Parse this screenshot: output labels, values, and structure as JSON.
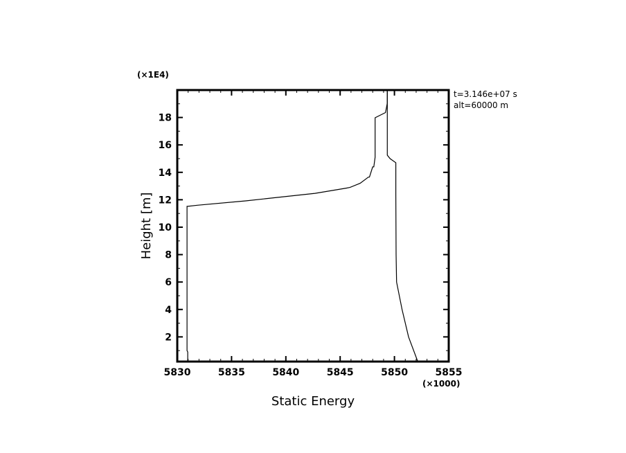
{
  "chart_data": {
    "type": "line",
    "xlabel": "Static Energy",
    "ylabel": "Height [m]",
    "x_multiplier_label": "(×1000)",
    "y_multiplier_label": "(×1E4)",
    "xlim": [
      5830,
      5855
    ],
    "ylim": [
      0.2,
      20
    ],
    "x_ticks": [
      5830,
      5835,
      5840,
      5845,
      5850,
      5855
    ],
    "x_tick_labels": [
      "5830",
      "5835",
      "5840",
      "5845",
      "5850",
      "5855"
    ],
    "y_ticks": [
      2,
      4,
      6,
      8,
      10,
      12,
      14,
      16,
      18
    ],
    "y_tick_labels": [
      "2",
      "4",
      "6",
      "8",
      "10",
      "12",
      "14",
      "16",
      "18"
    ],
    "grid": false,
    "color": "#000000",
    "annotations": [
      "t=3.146e+07 s",
      "alt=60000 m"
    ],
    "series": [
      {
        "x": [
          5830.96,
          5830.96,
          5830.9,
          5830.9,
          5830.96,
          5831.85,
          5836.3,
          5842.7,
          5845.56,
          5845.9,
          5846.84,
          5847.6,
          5847.7,
          5848.0,
          5848.1,
          5848.22,
          5848.22,
          5849.18,
          5849.34,
          5849.34
        ],
        "y": [
          0.2,
          0.9,
          1.0,
          11.52,
          11.52,
          11.6,
          11.92,
          12.47,
          12.85,
          12.9,
          13.2,
          13.65,
          13.65,
          14.4,
          14.4,
          15.1,
          17.98,
          18.36,
          19.05,
          20
        ]
      },
      {
        "x": [
          5852.15,
          5851.3,
          5850.7,
          5850.2,
          5850.15,
          5850.13,
          5850.13,
          5849.6,
          5849.34,
          5849.34,
          5849.34
        ],
        "y": [
          0.2,
          2,
          4,
          6,
          8,
          12.4,
          14.7,
          15.0,
          15.25,
          16.2,
          20
        ]
      }
    ]
  }
}
